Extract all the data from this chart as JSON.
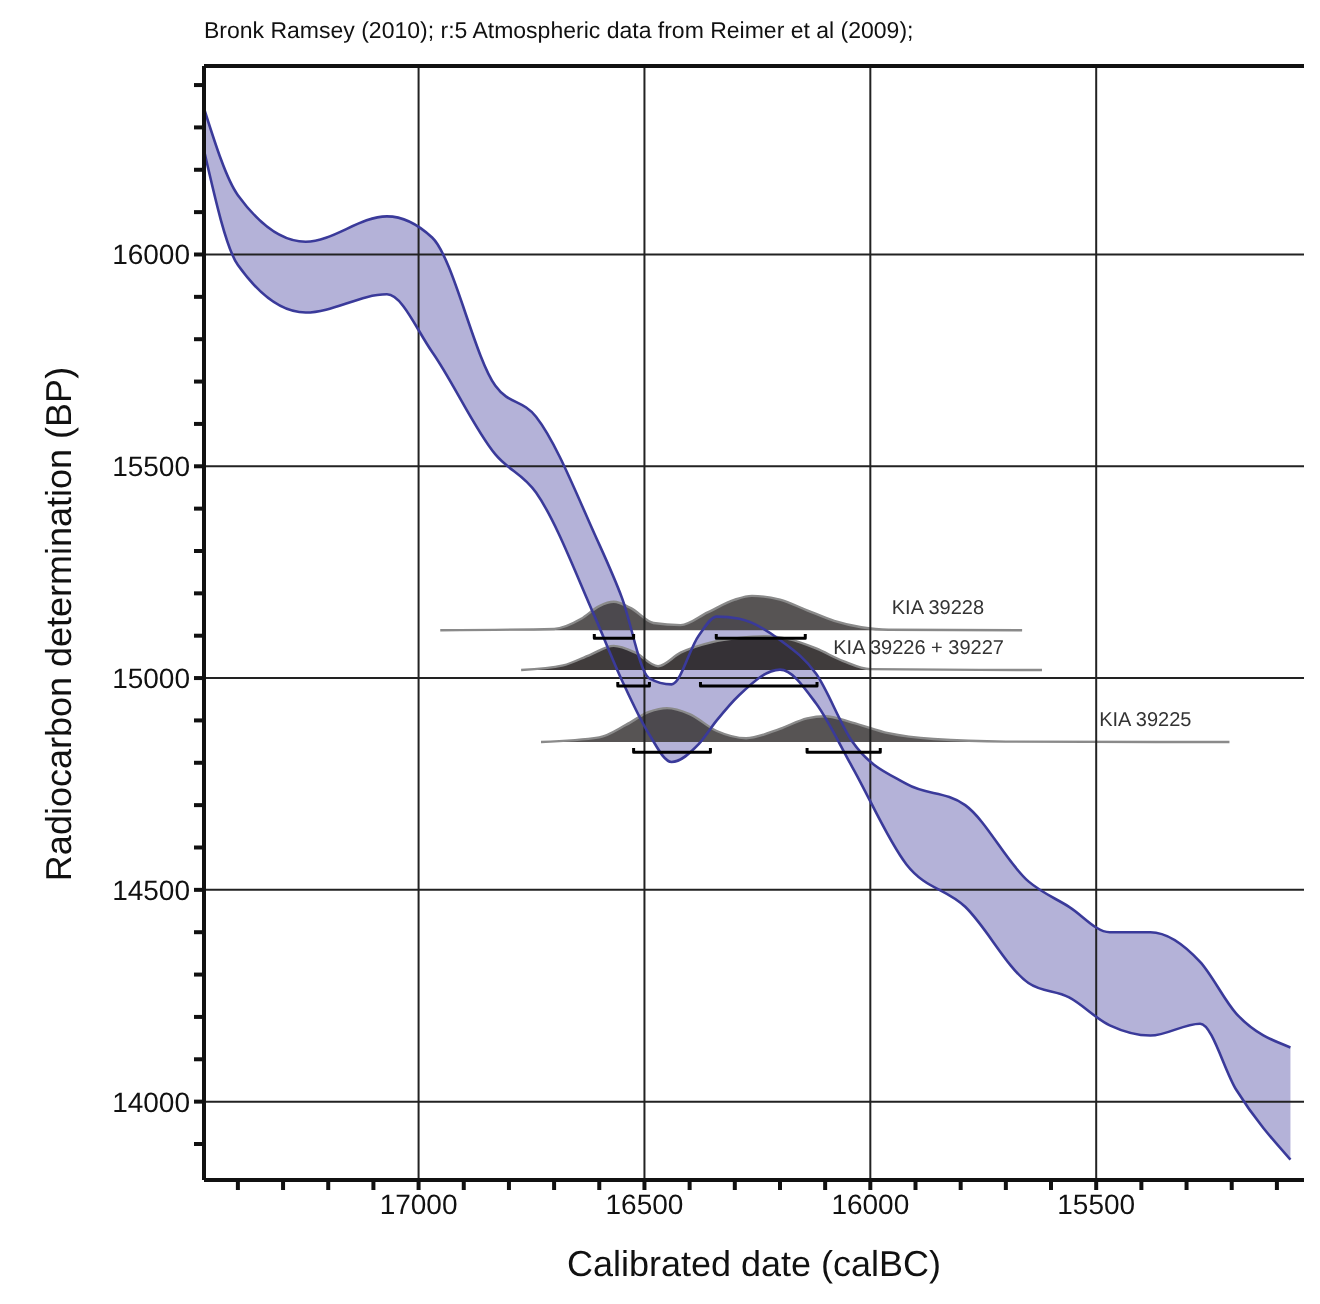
{
  "chart_data": {
    "type": "area",
    "title": "Bronk Ramsey (2010); r:5 Atmospheric data from Reimer et al (2009);",
    "xlabel": "Calibrated date (calBC)",
    "ylabel": "Radiocarbon determination (BP)",
    "xlim": [
      17475,
      15040
    ],
    "ylim": [
      13815,
      16445
    ],
    "xticks": [
      {
        "value": 17400,
        "label": null
      },
      {
        "value": 17300,
        "label": null
      },
      {
        "value": 17200,
        "label": null
      },
      {
        "value": 17100,
        "label": null
      },
      17000,
      {
        "value": 16900,
        "label": null
      },
      {
        "value": 16800,
        "label": null
      },
      {
        "value": 16700,
        "label": null
      },
      {
        "value": 16600,
        "label": null
      },
      16500,
      {
        "value": 16400,
        "label": null
      },
      {
        "value": 16300,
        "label": null
      },
      {
        "value": 16200,
        "label": null
      },
      {
        "value": 16100,
        "label": null
      },
      16000,
      {
        "value": 15900,
        "label": null
      },
      {
        "value": 15800,
        "label": null
      },
      {
        "value": 15700,
        "label": null
      },
      {
        "value": 15600,
        "label": null
      },
      15500,
      {
        "value": 15400,
        "label": null
      },
      {
        "value": 15300,
        "label": null
      },
      {
        "value": 15200,
        "label": null
      },
      {
        "value": 15100,
        "label": null
      }
    ],
    "yticks": [
      {
        "value": 13900,
        "label": null
      },
      14000,
      {
        "value": 14100,
        "label": null
      },
      {
        "value": 14200,
        "label": null
      },
      {
        "value": 14300,
        "label": null
      },
      {
        "value": 14400,
        "label": null
      },
      14500,
      {
        "value": 14600,
        "label": null
      },
      {
        "value": 14700,
        "label": null
      },
      {
        "value": 14800,
        "label": null
      },
      {
        "value": 14900,
        "label": null
      },
      15000,
      {
        "value": 15100,
        "label": null
      },
      {
        "value": 15200,
        "label": null
      },
      {
        "value": 15300,
        "label": null
      },
      {
        "value": 15400,
        "label": null
      },
      15500,
      {
        "value": 15600,
        "label": null
      },
      {
        "value": 15700,
        "label": null
      },
      {
        "value": 15800,
        "label": null
      },
      {
        "value": 15900,
        "label": null
      },
      16000,
      {
        "value": 16100,
        "label": null
      },
      {
        "value": 16200,
        "label": null
      },
      {
        "value": 16300,
        "label": null
      },
      {
        "value": 16400,
        "label": null
      }
    ],
    "grid": true,
    "legend": false,
    "series": [
      {
        "color": "#b4b2d8",
        "x": [
          17475,
          17400,
          17250,
          17070,
          16970,
          16830,
          16740,
          16610,
          16550,
          16490,
          16440,
          16380,
          16340,
          16290,
          16200,
          16120,
          16040,
          15920,
          15790,
          15650,
          15560,
          15470,
          15380,
          15270,
          15190,
          15070
        ],
        "values": [
          16345,
          16140,
          16030,
          16090,
          16040,
          15690,
          15617,
          15339,
          15190,
          15000,
          14985,
          15100,
          15145,
          15140,
          15090,
          15010,
          14850,
          14750,
          14700,
          14520,
          14460,
          14400,
          14400,
          14330,
          14208,
          14128
        ]
      },
      {
        "type": "line",
        "color": "#3a3a9a",
        "x": [
          17475,
          17400,
          17250,
          17070,
          16970,
          16830,
          16740,
          16610,
          16550,
          16490,
          16440,
          16380,
          16340,
          16290,
          16200,
          16120,
          16040,
          15920,
          15790,
          15650,
          15560,
          15470,
          15380,
          15270,
          15190,
          15070
        ],
        "values": [
          16246,
          15975,
          15863,
          15906,
          15770,
          15528,
          15438,
          15145,
          14995,
          14868,
          14802,
          14844,
          14900,
          14960,
          15020,
          14940,
          14790,
          14560,
          14460,
          14280,
          14246,
          14180,
          14156,
          14184,
          14028,
          13863
        ]
      },
      {
        "name": "KIA 39228",
        "color": "#3a3636",
        "x": [
          16952,
          16700,
          16640,
          16600,
          16568,
          16530,
          16480,
          16420,
          16360,
          16300,
          16262,
          16200,
          16140,
          16080,
          16020,
          15960,
          15664
        ],
        "values": [
          15113,
          15116,
          15140,
          15170,
          15180,
          15165,
          15130,
          15125,
          15155,
          15185,
          15194,
          15185,
          15160,
          15135,
          15120,
          15114,
          15113
        ]
      },
      {
        "name": "KIA 39226 + 39227",
        "color": "#1e1a1a",
        "x": [
          16773,
          16680,
          16620,
          16568,
          16520,
          16470,
          16420,
          16350,
          16290,
          16232,
          16180,
          16120,
          16060,
          16000,
          15620
        ],
        "values": [
          15019,
          15030,
          15055,
          15076,
          15060,
          15028,
          15060,
          15085,
          15095,
          15099,
          15092,
          15070,
          15040,
          15021,
          15019
        ]
      },
      {
        "name": "KIA 39225",
        "color": "#3a3636",
        "x": [
          16729,
          16600,
          16540,
          16490,
          16450,
          16400,
          16340,
          16275,
          16200,
          16140,
          16100,
          16040,
          15960,
          15860,
          15700,
          15205
        ],
        "values": [
          14849,
          14860,
          14890,
          14920,
          14929,
          14915,
          14875,
          14858,
          14880,
          14905,
          14910,
          14895,
          14870,
          14856,
          14850,
          14849
        ]
      },
      {
        "type": "line",
        "color": "#000000",
        "x": [
          16611,
          16611,
          16524,
          16524
        ],
        "values": [
          15104,
          15094,
          15094,
          15104
        ]
      },
      {
        "type": "line",
        "color": "#000000",
        "x": [
          16341,
          16341,
          16144,
          16144
        ],
        "values": [
          15104,
          15094,
          15094,
          15104
        ]
      },
      {
        "type": "line",
        "color": "#000000",
        "x": [
          16559,
          16559,
          16489,
          16489
        ],
        "values": [
          14991,
          14981,
          14981,
          14991
        ]
      },
      {
        "type": "line",
        "color": "#000000",
        "x": [
          16376,
          16376,
          16118,
          16118
        ],
        "values": [
          14991,
          14981,
          14981,
          14991
        ]
      },
      {
        "type": "line",
        "color": "#000000",
        "x": [
          16524,
          16524,
          16354,
          16354
        ],
        "values": [
          14835,
          14825,
          14825,
          14835
        ]
      },
      {
        "type": "line",
        "color": "#000000",
        "x": [
          16140,
          16140,
          15978,
          15978
        ],
        "values": [
          14835,
          14825,
          14825,
          14835
        ]
      }
    ]
  }
}
